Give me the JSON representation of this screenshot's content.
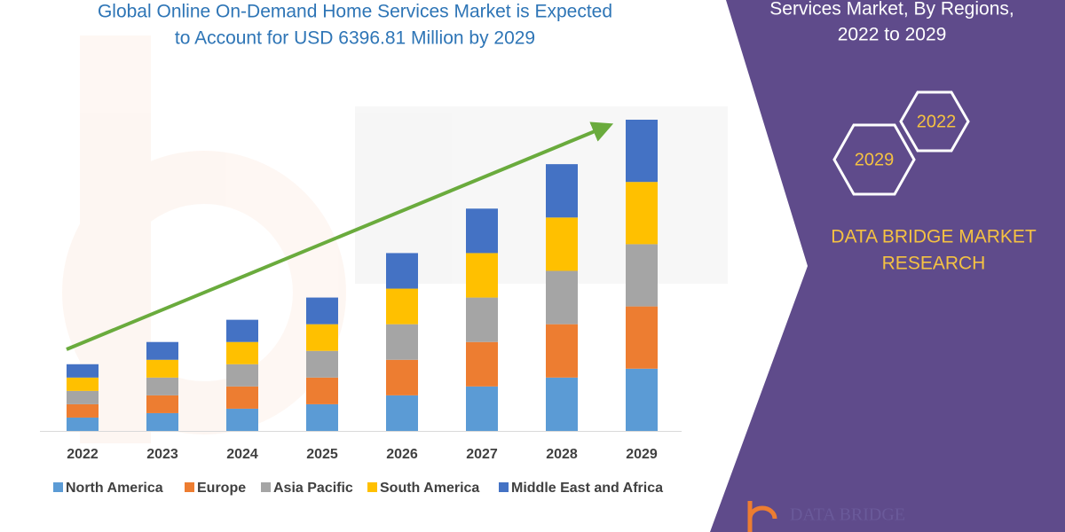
{
  "chart_data": {
    "type": "stacked-bar",
    "title_lines": [
      "Global Online On-Demand Home Services Market is Expected",
      "to Account for USD 6396.81 Million by 2029"
    ],
    "categories": [
      "2022",
      "2023",
      "2024",
      "2025",
      "2026",
      "2027",
      "2028",
      "2029"
    ],
    "series": [
      {
        "name": "North America",
        "color": "#5b9bd5",
        "values": [
          15,
          20,
          25,
          30,
          40,
          50,
          60,
          70
        ]
      },
      {
        "name": "Europe",
        "color": "#ed7d31",
        "values": [
          15,
          20,
          25,
          30,
          40,
          50,
          60,
          70
        ]
      },
      {
        "name": "Asia Pacific",
        "color": "#a5a5a5",
        "values": [
          15,
          20,
          25,
          30,
          40,
          50,
          60,
          70
        ]
      },
      {
        "name": "South America",
        "color": "#ffc000",
        "values": [
          15,
          20,
          25,
          30,
          40,
          50,
          60,
          70
        ]
      },
      {
        "name": "Middle East and Africa",
        "color": "#4472c4",
        "values": [
          15,
          20,
          25,
          30,
          40,
          50,
          60,
          70
        ]
      }
    ]
  },
  "side_panel": {
    "title_lines": [
      "Services Market, By Regions,",
      "2022 to 2029"
    ],
    "hexagons": [
      "2022",
      "2029"
    ],
    "brand_lines": [
      "DATA BRIDGE MARKET",
      "RESEARCH"
    ],
    "logo_text": "DATA BRIDGE"
  }
}
